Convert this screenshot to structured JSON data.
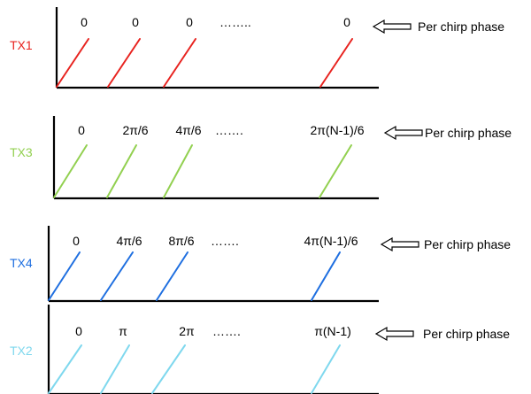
{
  "colors": {
    "tx1": "#e8231f",
    "tx3": "#92d050",
    "tx4": "#1f6fe0",
    "tx2": "#7fd8ee",
    "axis": "#000000"
  },
  "panels": [
    {
      "tx_label": "TX1",
      "color_key": "tx1",
      "phases": [
        "0",
        "0",
        "0",
        "……..",
        "0"
      ],
      "annotation": "Per chirp phase"
    },
    {
      "tx_label": "TX3",
      "color_key": "tx3",
      "phases": [
        "0",
        "2π/6",
        "4π/6",
        "…….",
        "2π(N-1)/6"
      ],
      "annotation": "Per chirp phase"
    },
    {
      "tx_label": "TX4",
      "color_key": "tx4",
      "phases": [
        "0",
        "4π/6",
        "8π/6",
        "…….",
        "4π(N-1)/6"
      ],
      "annotation": "Per chirp phase"
    },
    {
      "tx_label": "TX2",
      "color_key": "tx2",
      "phases": [
        "0",
        "π",
        "2π",
        "…….",
        "π(N-1)"
      ],
      "annotation": "Per chirp phase"
    }
  ]
}
